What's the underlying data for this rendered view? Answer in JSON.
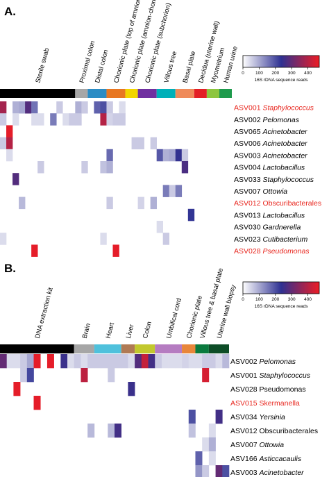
{
  "colors": {
    "low": "#ffffff",
    "mid": "#2e3192",
    "high": "#ed1c24",
    "highlight_text": "#e8261e"
  },
  "chart_data": [
    {
      "type": "heatmap",
      "panel": "A.",
      "legend": {
        "title": "16S rDNA sequence reads",
        "min": 0,
        "max": 470,
        "ticks": [
          0,
          100,
          200,
          300,
          400
        ]
      },
      "groups": [
        {
          "label": "Sterile swab",
          "n": 12,
          "color": "#000000"
        },
        {
          "label": "Proximal colon",
          "n": 2,
          "color": "#a6a6a6"
        },
        {
          "label": "Distal colon",
          "n": 3,
          "color": "#2b8cc4"
        },
        {
          "label": "Chorionic plate (top of amnion)",
          "n": 3,
          "color": "#e87722"
        },
        {
          "label": "Chorionic plate (amnion-chorion interface)",
          "n": 2,
          "color": "#f2d500"
        },
        {
          "label": "Chorionic plate (subchorion)",
          "n": 3,
          "color": "#7030a0"
        },
        {
          "label": "Villous tree",
          "n": 3,
          "color": "#00b0b9"
        },
        {
          "label": "Basal plate",
          "n": 3,
          "color": "#ef8a5a"
        },
        {
          "label": "Decidua (uterine wall)",
          "n": 2,
          "color": "#e31f26"
        },
        {
          "label": "Myometrium",
          "n": 2,
          "color": "#8dc63f"
        },
        {
          "label": "Human urine",
          "n": 2,
          "color": "#1e9a4c"
        }
      ],
      "rows": [
        {
          "id": "ASV001",
          "taxon": "Staphylococcus",
          "italic": true,
          "highlight": true
        },
        {
          "id": "ASV002",
          "taxon": "Pelomonas",
          "italic": true,
          "highlight": false
        },
        {
          "id": "ASV065",
          "taxon": "Acinetobacter",
          "italic": true,
          "highlight": false
        },
        {
          "id": "ASV006",
          "taxon": "Acinetobacter",
          "italic": true,
          "highlight": false
        },
        {
          "id": "ASV003",
          "taxon": "Acinetobacter",
          "italic": true,
          "highlight": false
        },
        {
          "id": "ASV004",
          "taxon": "Lactobacillus",
          "italic": true,
          "highlight": false
        },
        {
          "id": "ASV033",
          "taxon": "Staphylococcus",
          "italic": true,
          "highlight": false
        },
        {
          "id": "ASV007",
          "taxon": "Ottowia",
          "italic": true,
          "highlight": false
        },
        {
          "id": "ASV012",
          "taxon": "Obscuribacterales",
          "italic": false,
          "highlight": true
        },
        {
          "id": "ASV013",
          "taxon": "Lactobacillus",
          "italic": true,
          "highlight": false
        },
        {
          "id": "ASV030",
          "taxon": "Gardnerella",
          "italic": true,
          "highlight": false
        },
        {
          "id": "ASV023",
          "taxon": "Cutibacterium",
          "italic": true,
          "highlight": false
        },
        {
          "id": "ASV028",
          "taxon": "Pseudomonas",
          "italic": true,
          "highlight": true
        }
      ],
      "cells": [
        [
          0,
          0,
          380
        ],
        [
          0,
          2,
          90
        ],
        [
          0,
          3,
          100
        ],
        [
          0,
          4,
          280
        ],
        [
          0,
          5,
          160
        ],
        [
          0,
          9,
          60
        ],
        [
          0,
          12,
          90
        ],
        [
          0,
          13,
          60
        ],
        [
          0,
          15,
          180
        ],
        [
          0,
          16,
          200
        ],
        [
          0,
          17,
          60
        ],
        [
          0,
          19,
          40
        ],
        [
          1,
          0,
          60
        ],
        [
          1,
          2,
          40
        ],
        [
          1,
          5,
          40
        ],
        [
          1,
          6,
          40
        ],
        [
          1,
          8,
          150
        ],
        [
          1,
          10,
          40
        ],
        [
          1,
          11,
          60
        ],
        [
          1,
          12,
          60
        ],
        [
          1,
          16,
          400
        ],
        [
          1,
          17,
          50
        ],
        [
          1,
          18,
          60
        ],
        [
          1,
          19,
          60
        ],
        [
          2,
          1,
          460
        ],
        [
          3,
          0,
          60
        ],
        [
          3,
          1,
          400
        ],
        [
          3,
          21,
          60
        ],
        [
          3,
          22,
          60
        ],
        [
          3,
          24,
          60
        ],
        [
          4,
          1,
          40
        ],
        [
          4,
          17,
          170
        ],
        [
          4,
          25,
          190
        ],
        [
          4,
          26,
          90
        ],
        [
          4,
          27,
          100
        ],
        [
          4,
          28,
          240
        ],
        [
          4,
          29,
          60
        ],
        [
          5,
          6,
          60
        ],
        [
          5,
          13,
          60
        ],
        [
          5,
          16,
          70
        ],
        [
          5,
          17,
          90
        ],
        [
          5,
          29,
          270
        ],
        [
          6,
          2,
          280
        ],
        [
          7,
          26,
          150
        ],
        [
          7,
          27,
          60
        ],
        [
          7,
          28,
          150
        ],
        [
          8,
          3,
          80
        ],
        [
          8,
          17,
          60
        ],
        [
          8,
          22,
          50
        ],
        [
          8,
          24,
          90
        ],
        [
          9,
          30,
          230
        ],
        [
          10,
          25,
          40
        ],
        [
          11,
          0,
          40
        ],
        [
          11,
          16,
          40
        ],
        [
          11,
          26,
          60
        ],
        [
          12,
          5,
          460
        ],
        [
          12,
          18,
          460
        ]
      ]
    },
    {
      "type": "heatmap",
      "panel": "B.",
      "legend": {
        "title": "16S rDNA sequence reads",
        "min": 0,
        "max": 470,
        "ticks": [
          0,
          100,
          200,
          300,
          400
        ]
      },
      "groups": [
        {
          "label": "DNA extraction kit",
          "n": 11,
          "color": "#000000"
        },
        {
          "label": "Brain",
          "n": 3,
          "color": "#a6a6a6"
        },
        {
          "label": "Heart",
          "n": 4,
          "color": "#4fc1dc"
        },
        {
          "label": "Liver",
          "n": 2,
          "color": "#b07a54"
        },
        {
          "label": "Colon",
          "n": 3,
          "color": "#c2c82d"
        },
        {
          "label": "Umbilical cord",
          "n": 4,
          "color": "#b57cc1"
        },
        {
          "label": "Chorionic plate",
          "n": 2,
          "color": "#e8863a"
        },
        {
          "label": "Villous tree & basal plate",
          "n": 2,
          "color": "#0a7a3e"
        },
        {
          "label": "Uterine wall biopsy",
          "n": 3,
          "color": "#0d4d27"
        }
      ],
      "rows": [
        {
          "id": "ASV002",
          "taxon": "Pelomonas",
          "italic": true,
          "highlight": false
        },
        {
          "id": "ASV001",
          "taxon": "Staphylococcus",
          "italic": true,
          "highlight": false
        },
        {
          "id": "ASV028",
          "taxon": "Pseudomonas",
          "italic": false,
          "highlight": false
        },
        {
          "id": "ASV015",
          "taxon": "Skermanella",
          "italic": false,
          "highlight": true
        },
        {
          "id": "ASV034",
          "taxon": "Yersinia",
          "italic": true,
          "highlight": false
        },
        {
          "id": "ASV012",
          "taxon": "Obscuribacterales",
          "italic": false,
          "highlight": false
        },
        {
          "id": "ASV007",
          "taxon": "Ottowia",
          "italic": true,
          "highlight": false
        },
        {
          "id": "ASV166",
          "taxon": "Asticcacaulis",
          "italic": true,
          "highlight": false
        },
        {
          "id": "ASV003",
          "taxon": "Acinetobacter",
          "italic": true,
          "highlight": false
        }
      ],
      "cells": [
        [
          0,
          0,
          300
        ],
        [
          0,
          1,
          40
        ],
        [
          0,
          2,
          40
        ],
        [
          0,
          3,
          60
        ],
        [
          0,
          4,
          100
        ],
        [
          0,
          5,
          460
        ],
        [
          0,
          7,
          460
        ],
        [
          0,
          9,
          250
        ],
        [
          0,
          10,
          40
        ],
        [
          0,
          11,
          60
        ],
        [
          0,
          12,
          40
        ],
        [
          0,
          13,
          60
        ],
        [
          0,
          14,
          60
        ],
        [
          0,
          15,
          60
        ],
        [
          0,
          16,
          60
        ],
        [
          0,
          17,
          60
        ],
        [
          0,
          18,
          60
        ],
        [
          0,
          19,
          40
        ],
        [
          0,
          20,
          280
        ],
        [
          0,
          21,
          420
        ],
        [
          0,
          22,
          260
        ],
        [
          0,
          23,
          60
        ],
        [
          0,
          24,
          40
        ],
        [
          0,
          25,
          40
        ],
        [
          0,
          26,
          40
        ],
        [
          0,
          27,
          50
        ],
        [
          0,
          28,
          40
        ],
        [
          0,
          29,
          40
        ],
        [
          0,
          30,
          60
        ],
        [
          0,
          31,
          60
        ],
        [
          0,
          32,
          40
        ],
        [
          0,
          33,
          80
        ],
        [
          1,
          3,
          60
        ],
        [
          1,
          4,
          210
        ],
        [
          1,
          12,
          410
        ],
        [
          1,
          16,
          60
        ],
        [
          1,
          30,
          440
        ],
        [
          2,
          2,
          460
        ],
        [
          2,
          19,
          250
        ],
        [
          3,
          5,
          460
        ],
        [
          4,
          28,
          200
        ],
        [
          4,
          32,
          260
        ],
        [
          5,
          13,
          80
        ],
        [
          5,
          16,
          80
        ],
        [
          5,
          17,
          260
        ],
        [
          5,
          28,
          70
        ],
        [
          5,
          31,
          40
        ],
        [
          6,
          30,
          40
        ],
        [
          6,
          31,
          90
        ],
        [
          7,
          29,
          180
        ],
        [
          7,
          31,
          40
        ],
        [
          8,
          29,
          120
        ],
        [
          8,
          30,
          60
        ],
        [
          8,
          32,
          300
        ],
        [
          8,
          33,
          200
        ]
      ]
    }
  ]
}
